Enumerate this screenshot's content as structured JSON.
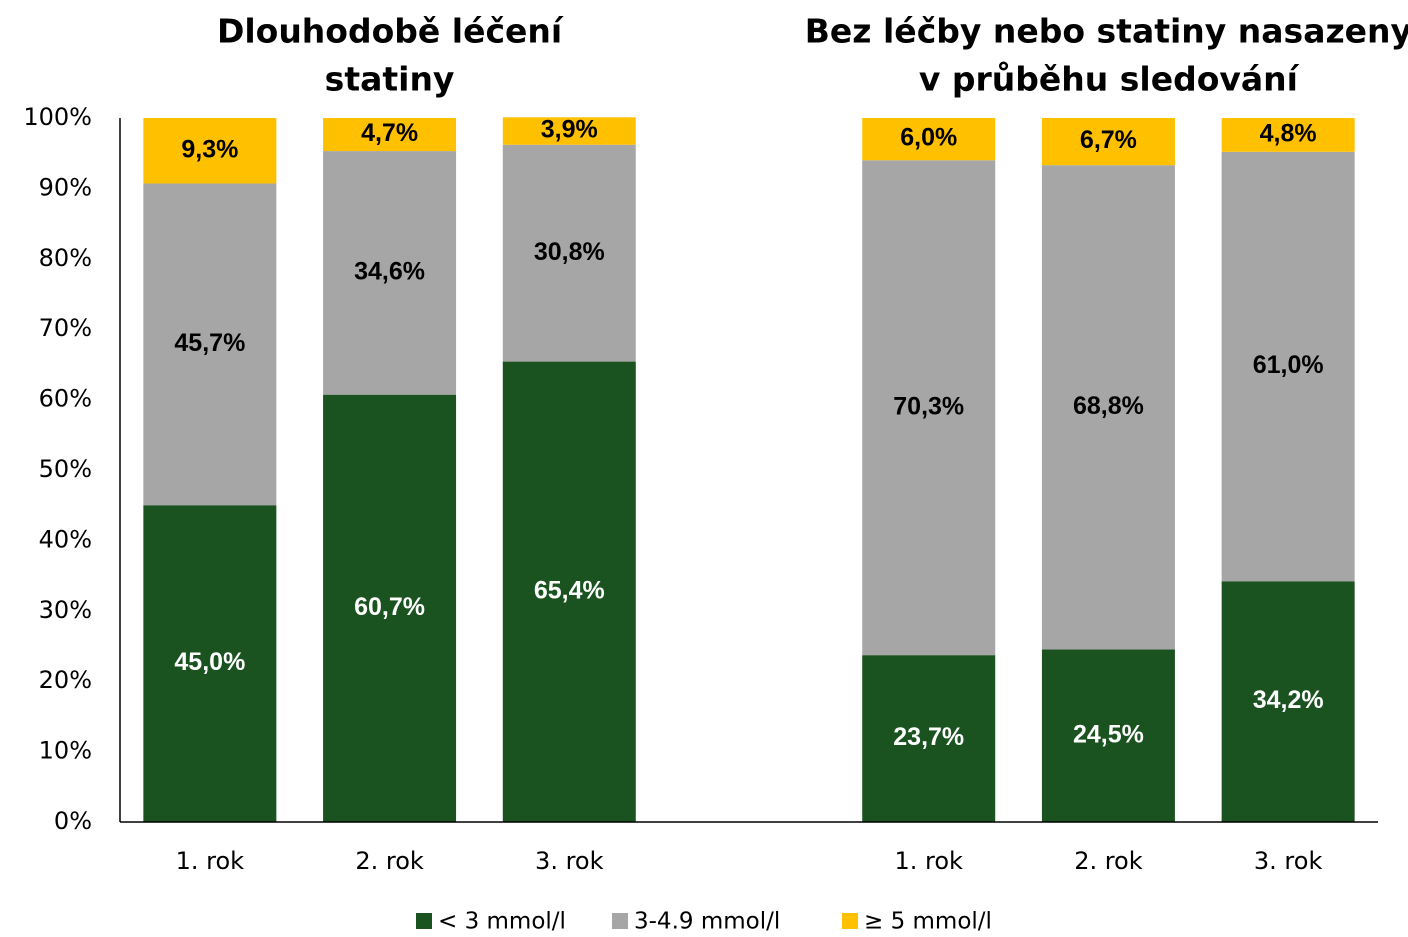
{
  "chart_data": {
    "type": "stacked_bar",
    "group_titles": [
      [
        "Dlouhodobě léčení",
        "statiny"
      ],
      [
        "Bez léčby nebo statiny nasazeny",
        "v průběhu sledování"
      ]
    ],
    "categories": [
      "1. rok",
      "2. rok",
      "3. rok",
      null,
      "1. rok",
      "2. rok",
      "3. rok"
    ],
    "series": [
      {
        "name": "< 3 mmol/l",
        "color": "#1a5220",
        "label_color": "#ffffff",
        "values": [
          45.0,
          60.7,
          65.4,
          null,
          23.7,
          24.5,
          34.2
        ],
        "value_labels": [
          "45,0%",
          "60,7%",
          "65,4%",
          null,
          "23,7%",
          "24,5%",
          "34,2%"
        ]
      },
      {
        "name": "3-4.9 mmol/l",
        "color": "#a6a6a6",
        "label_color": "#000000",
        "values": [
          45.7,
          34.6,
          30.8,
          null,
          70.3,
          68.8,
          61.0
        ],
        "value_labels": [
          "45,7%",
          "34,6%",
          "30,8%",
          null,
          "70,3%",
          "68,8%",
          "61,0%"
        ]
      },
      {
        "name": "≥ 5 mmol/l",
        "color": "#ffc000",
        "label_color": "#000000",
        "values": [
          9.3,
          4.7,
          3.9,
          null,
          6.0,
          6.7,
          4.8
        ],
        "value_labels": [
          "9,3%",
          "4,7%",
          "3,9%",
          null,
          "6,0%",
          "6,7%",
          "4,8%"
        ]
      }
    ],
    "ylim": [
      0,
      100
    ],
    "yticks": [
      {
        "value": 0,
        "label": "0%"
      },
      {
        "value": 10,
        "label": "10%"
      },
      {
        "value": 20,
        "label": "20%"
      },
      {
        "value": 30,
        "label": "30%"
      },
      {
        "value": 40,
        "label": "40%"
      },
      {
        "value": 50,
        "label": "50%"
      },
      {
        "value": 60,
        "label": "60%"
      },
      {
        "value": 70,
        "label": "70%"
      },
      {
        "value": 80,
        "label": "80%"
      },
      {
        "value": 90,
        "label": "90%"
      },
      {
        "value": 100,
        "label": "100%"
      }
    ],
    "grid": false,
    "legend": "bottom"
  }
}
